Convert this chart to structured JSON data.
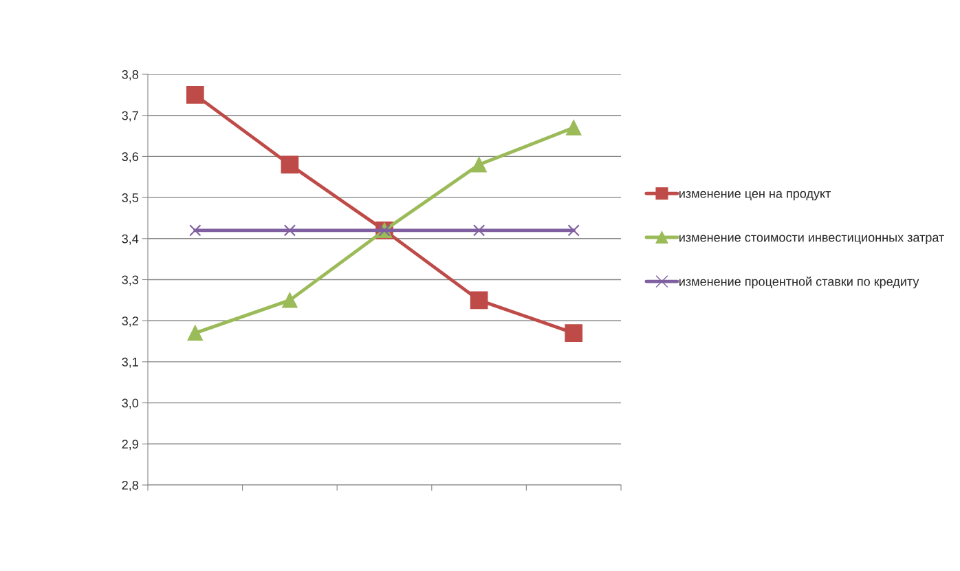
{
  "chart_data": {
    "type": "line",
    "categories": [
      null,
      null,
      null,
      null,
      null
    ],
    "series": [
      {
        "name": "изменение цен на продукт",
        "color": "#be4b48",
        "marker": "square",
        "values": [
          3.75,
          3.58,
          3.42,
          3.25,
          3.17
        ]
      },
      {
        "name": "изменение стоимости инвестиционных затрат",
        "color": "#9bbb59",
        "marker": "triangle",
        "values": [
          3.17,
          3.25,
          3.42,
          3.58,
          3.67
        ]
      },
      {
        "name": "изменение процентной ставки по кредиту",
        "color": "#7f5fa0",
        "marker": "cross",
        "values": [
          3.42,
          3.42,
          3.42,
          3.42,
          3.42
        ]
      }
    ],
    "ylim": [
      2.8,
      3.8
    ],
    "yticks": [
      {
        "value": 2.8,
        "label": "2,8"
      },
      {
        "value": 2.9,
        "label": "2,9"
      },
      {
        "value": 3.0,
        "label": "3,0"
      },
      {
        "value": 3.1,
        "label": "3,1"
      },
      {
        "value": 3.2,
        "label": "3,2"
      },
      {
        "value": 3.3,
        "label": "3,3"
      },
      {
        "value": 3.4,
        "label": "3,4"
      },
      {
        "value": 3.5,
        "label": "3,5"
      },
      {
        "value": 3.6,
        "label": "3,6"
      },
      {
        "value": 3.7,
        "label": "3,7"
      },
      {
        "value": 3.8,
        "label": "3,8"
      }
    ],
    "grid": "y",
    "legend": "right",
    "line_style": "solid"
  }
}
